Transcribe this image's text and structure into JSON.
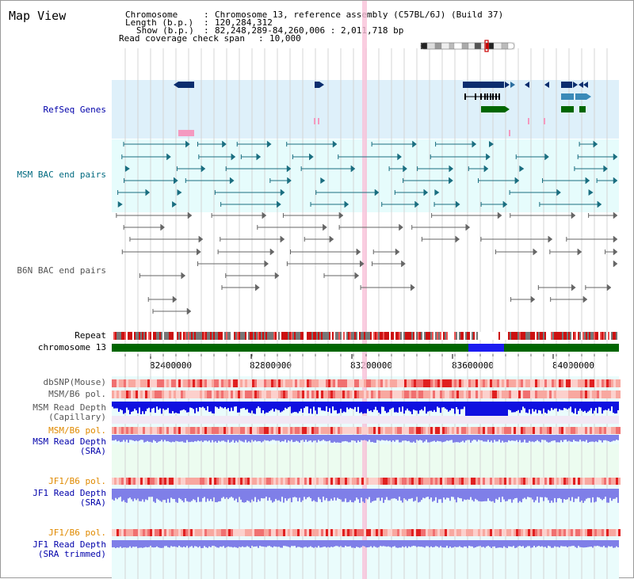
{
  "page": {
    "title": "Map View"
  },
  "header": {
    "chromosome_key": "Chromosome",
    "chromosome_val": "Chromosome 13, reference assembly (C57BL/6J) (Build 37)",
    "length_key": "Length (b.p.)",
    "length_val": "120,284,312",
    "show_key": "Show (b.p.)",
    "show_val": "82,248,289-84,260,006 : 2,011,718 bp",
    "coverage_key": "Read coverage check span",
    "coverage_val": "10,000"
  },
  "tracks": {
    "refseq": "RefSeq Genes",
    "msm_bac": "MSM BAC end pairs",
    "b6n_bac": "B6N BAC end pairs",
    "repeat": "Repeat",
    "chromosome": "chromosome 13",
    "dbsnp": "dbSNP(Mouse)",
    "msm_b6_pol": "MSM/B6 pol.",
    "msm_depth_cap_1": "MSM Read Depth",
    "msm_depth_cap_2": "(Capillary)",
    "msm_b6_pol_2": "MSM/B6 pol.",
    "msm_depth_sra_1": "MSM Read Depth",
    "msm_depth_sra_2": "(SRA)",
    "jf1_b6_pol": "JF1/B6 pol.",
    "jf1_depth_sra_1": "JF1 Read Depth",
    "jf1_depth_sra_2": "(SRA)",
    "jf1_b6_pol_2": "JF1/B6 pol.",
    "jf1_depth_trim_1": "JF1 Read Depth",
    "jf1_depth_trim_2": "(SRA trimmed)"
  },
  "axis": {
    "ticks": [
      "82400000",
      "82800000",
      "83200000",
      "83600000",
      "84000000"
    ]
  },
  "colors": {
    "refseq_bg": "#def0fa",
    "bac_bg": "#e6fcfc",
    "depth_bg": "#e6fcfc",
    "highlight": "#f9c0d8",
    "label_blue": "#0000aa",
    "label_teal": "#006a80",
    "label_gray": "#555555",
    "label_orange": "#e08a00",
    "chromosome_green": "#006600",
    "chromosome_blue": "#1c1cf0"
  }
}
